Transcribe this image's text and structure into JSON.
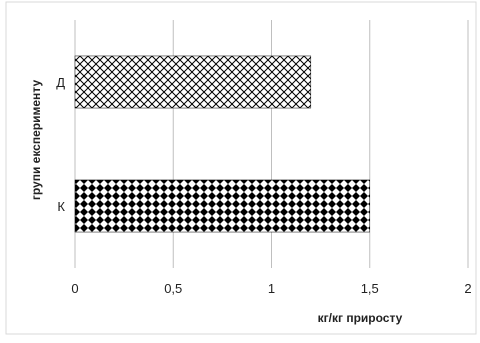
{
  "chart_data": {
    "type": "bar",
    "orientation": "horizontal",
    "categories": [
      "К",
      "Д"
    ],
    "values": [
      1.5,
      1.2
    ],
    "bar_patterns": [
      "diamond-dots",
      "diagonal-weave"
    ],
    "xlabel": "кг/кг приросту",
    "ylabel": "групи експерименту",
    "xlim": [
      0,
      2
    ],
    "xticks": [
      "0",
      "0,5",
      "1",
      "1,5",
      "2"
    ],
    "grid": "vertical",
    "legend": "none"
  }
}
